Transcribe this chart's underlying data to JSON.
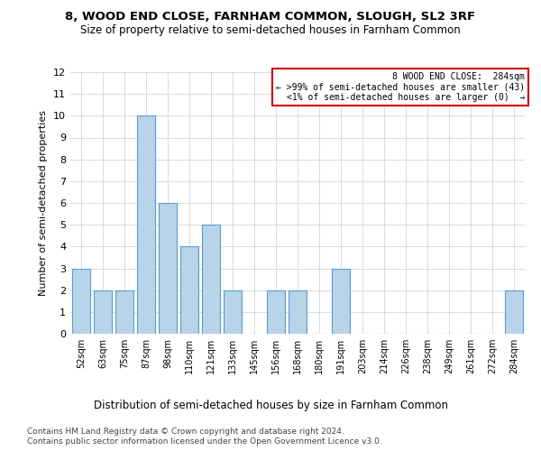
{
  "title": "8, WOOD END CLOSE, FARNHAM COMMON, SLOUGH, SL2 3RF",
  "subtitle": "Size of property relative to semi-detached houses in Farnham Common",
  "xlabel_dist": "Distribution of semi-detached houses by size in Farnham Common",
  "ylabel": "Number of semi-detached properties",
  "footer_line1": "Contains HM Land Registry data © Crown copyright and database right 2024.",
  "footer_line2": "Contains public sector information licensed under the Open Government Licence v3.0.",
  "categories": [
    "52sqm",
    "63sqm",
    "75sqm",
    "87sqm",
    "98sqm",
    "110sqm",
    "121sqm",
    "133sqm",
    "145sqm",
    "156sqm",
    "168sqm",
    "180sqm",
    "191sqm",
    "203sqm",
    "214sqm",
    "226sqm",
    "238sqm",
    "249sqm",
    "261sqm",
    "272sqm",
    "284sqm"
  ],
  "values": [
    3,
    2,
    2,
    10,
    6,
    4,
    5,
    2,
    0,
    2,
    2,
    0,
    3,
    0,
    0,
    0,
    0,
    0,
    0,
    0,
    2
  ],
  "bar_color": "#b8d4e8",
  "bar_edge_color": "#5b9bd5",
  "ylim": [
    0,
    12
  ],
  "yticks": [
    0,
    1,
    2,
    3,
    4,
    5,
    6,
    7,
    8,
    9,
    10,
    11,
    12
  ],
  "grid_color": "#cccccc",
  "annotation_text_line1": "8 WOOD END CLOSE:  284sqm",
  "annotation_text_line2": "← >99% of semi-detached houses are smaller (43)",
  "annotation_text_line3": "<1% of semi-detached houses are larger (0)  →",
  "annotation_box_edge_color": "#cc0000",
  "title_fontsize": 9.5,
  "subtitle_fontsize": 8.5,
  "tick_fontsize": 7,
  "ylabel_fontsize": 8,
  "xlabel_dist_fontsize": 8.5,
  "annotation_fontsize": 7,
  "footer_fontsize": 6.5
}
